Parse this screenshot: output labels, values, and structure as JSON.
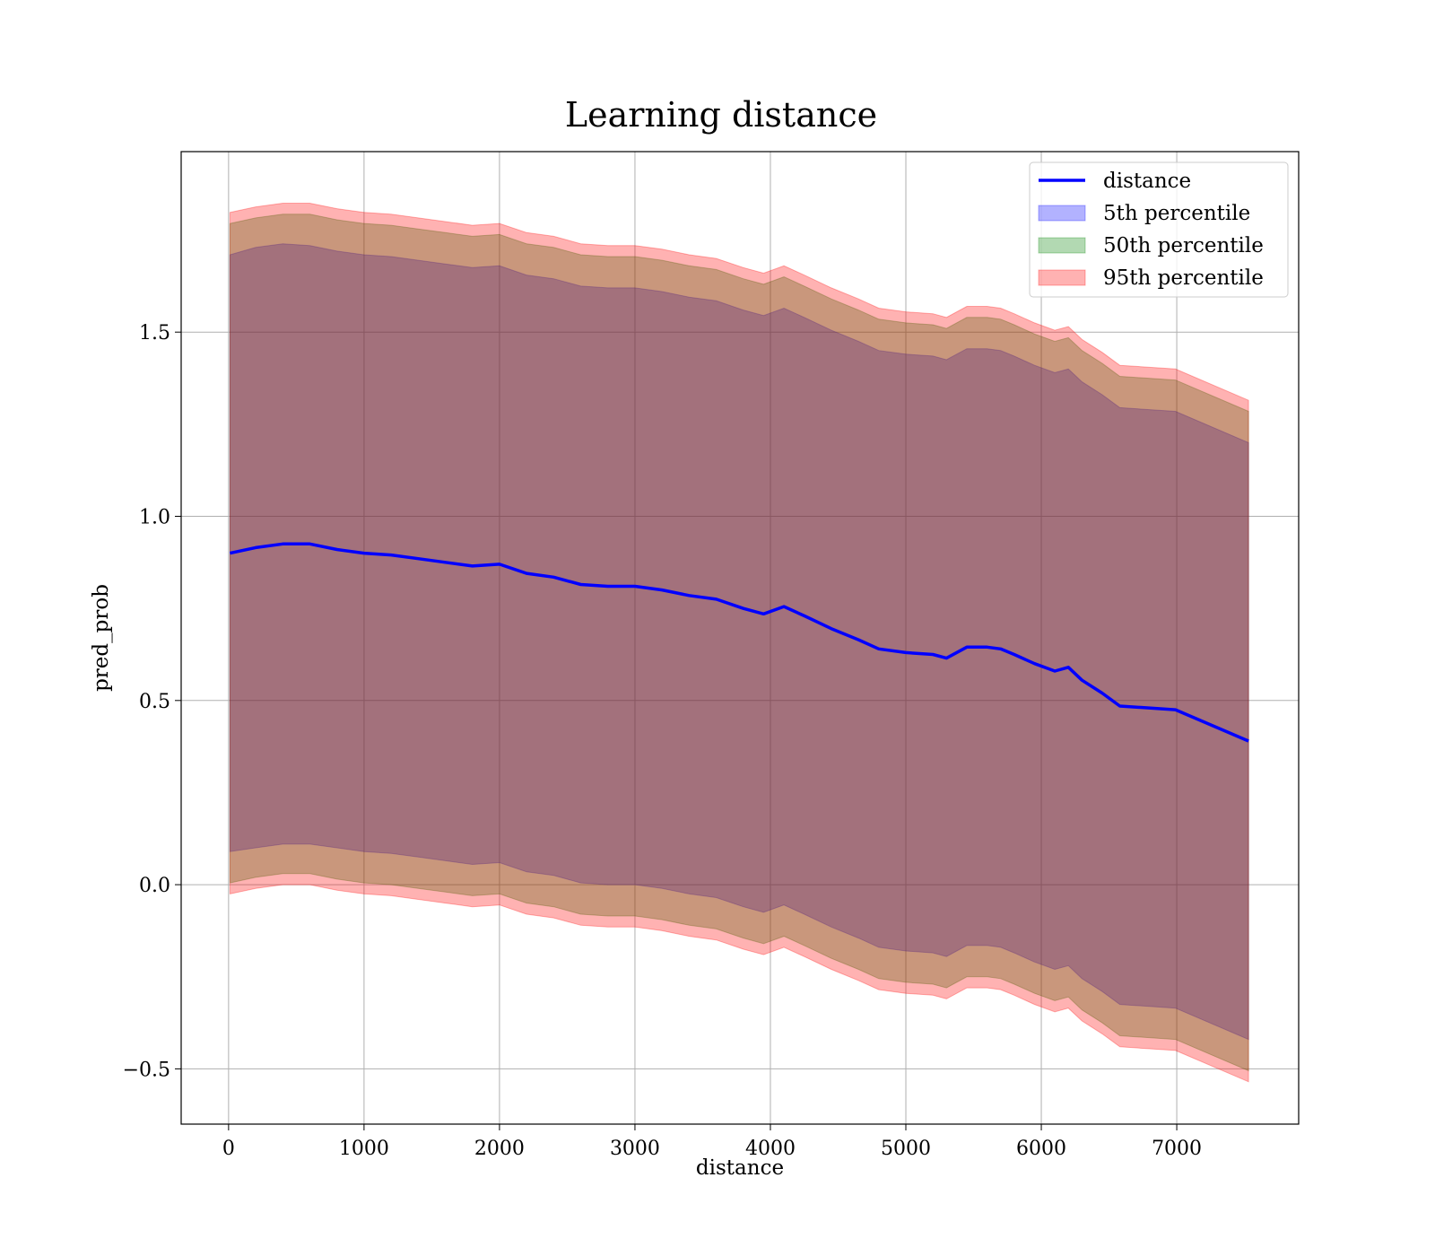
{
  "chart_data": {
    "type": "area",
    "title": "Learning distance",
    "xlabel": "distance",
    "ylabel": "pred_prob",
    "xlim": [
      -350,
      7900
    ],
    "ylim": [
      -0.65,
      1.99
    ],
    "xticks": [
      0,
      1000,
      2000,
      3000,
      4000,
      5000,
      6000,
      7000
    ],
    "yticks": [
      -0.5,
      0.0,
      0.5,
      1.0,
      1.5
    ],
    "xtick_labels": [
      "0",
      "1000",
      "2000",
      "3000",
      "4000",
      "5000",
      "6000",
      "7000"
    ],
    "ytick_labels": [
      "−0.5",
      "0.0",
      "0.5",
      "1.0",
      "1.5"
    ],
    "grid": true,
    "legend_position": "top-right",
    "x": [
      10,
      200,
      400,
      600,
      800,
      1000,
      1200,
      1400,
      1600,
      1800,
      2000,
      2200,
      2400,
      2600,
      2800,
      3000,
      3200,
      3400,
      3600,
      3800,
      3950,
      4100,
      4250,
      4450,
      4650,
      4800,
      5000,
      5200,
      5300,
      5450,
      5600,
      5700,
      5800,
      5950,
      6100,
      6200,
      6300,
      6450,
      6580,
      6990,
      7530
    ],
    "series": [
      {
        "name": "distance",
        "kind": "line",
        "color": "#0000ff",
        "values": [
          0.9,
          0.915,
          0.925,
          0.925,
          0.91,
          0.9,
          0.895,
          0.885,
          0.875,
          0.865,
          0.87,
          0.845,
          0.835,
          0.815,
          0.81,
          0.81,
          0.8,
          0.785,
          0.775,
          0.75,
          0.735,
          0.755,
          0.73,
          0.695,
          0.665,
          0.64,
          0.63,
          0.625,
          0.615,
          0.645,
          0.645,
          0.64,
          0.625,
          0.6,
          0.58,
          0.59,
          0.555,
          0.52,
          0.485,
          0.475,
          0.39
        ]
      },
      {
        "name": "5th percentile",
        "kind": "band",
        "color": "#0000ff",
        "upper": [
          1.71,
          1.73,
          1.74,
          1.735,
          1.72,
          1.71,
          1.705,
          1.695,
          1.685,
          1.675,
          1.68,
          1.655,
          1.645,
          1.625,
          1.62,
          1.62,
          1.61,
          1.595,
          1.585,
          1.56,
          1.545,
          1.565,
          1.54,
          1.505,
          1.475,
          1.45,
          1.44,
          1.435,
          1.425,
          1.455,
          1.455,
          1.45,
          1.435,
          1.41,
          1.39,
          1.4,
          1.365,
          1.33,
          1.295,
          1.285,
          1.2
        ],
        "lower": [
          0.09,
          0.1,
          0.11,
          0.11,
          0.1,
          0.09,
          0.085,
          0.075,
          0.065,
          0.055,
          0.06,
          0.035,
          0.025,
          0.005,
          0.0,
          0.0,
          -0.01,
          -0.025,
          -0.035,
          -0.06,
          -0.075,
          -0.055,
          -0.08,
          -0.115,
          -0.145,
          -0.17,
          -0.18,
          -0.185,
          -0.195,
          -0.165,
          -0.165,
          -0.17,
          -0.185,
          -0.21,
          -0.23,
          -0.22,
          -0.255,
          -0.29,
          -0.325,
          -0.335,
          -0.42
        ]
      },
      {
        "name": "50th percentile",
        "kind": "band",
        "color": "#008000",
        "upper": [
          1.795,
          1.81,
          1.82,
          1.82,
          1.805,
          1.795,
          1.79,
          1.78,
          1.77,
          1.76,
          1.765,
          1.74,
          1.73,
          1.71,
          1.705,
          1.705,
          1.695,
          1.68,
          1.67,
          1.645,
          1.63,
          1.65,
          1.625,
          1.59,
          1.56,
          1.535,
          1.525,
          1.52,
          1.51,
          1.54,
          1.54,
          1.535,
          1.52,
          1.495,
          1.475,
          1.485,
          1.45,
          1.415,
          1.38,
          1.37,
          1.285
        ],
        "lower": [
          0.005,
          0.02,
          0.03,
          0.03,
          0.015,
          0.005,
          0.0,
          -0.01,
          -0.02,
          -0.03,
          -0.025,
          -0.05,
          -0.06,
          -0.08,
          -0.085,
          -0.085,
          -0.095,
          -0.11,
          -0.12,
          -0.145,
          -0.16,
          -0.14,
          -0.165,
          -0.2,
          -0.23,
          -0.255,
          -0.265,
          -0.27,
          -0.28,
          -0.25,
          -0.25,
          -0.255,
          -0.27,
          -0.295,
          -0.315,
          -0.305,
          -0.34,
          -0.375,
          -0.41,
          -0.42,
          -0.505
        ]
      },
      {
        "name": "95th percentile",
        "kind": "band",
        "color": "#ff0000",
        "upper": [
          1.825,
          1.84,
          1.85,
          1.85,
          1.835,
          1.825,
          1.82,
          1.81,
          1.8,
          1.79,
          1.795,
          1.77,
          1.76,
          1.74,
          1.735,
          1.735,
          1.725,
          1.71,
          1.7,
          1.675,
          1.66,
          1.68,
          1.655,
          1.62,
          1.59,
          1.565,
          1.555,
          1.55,
          1.54,
          1.57,
          1.57,
          1.565,
          1.55,
          1.525,
          1.505,
          1.515,
          1.48,
          1.445,
          1.41,
          1.4,
          1.315
        ],
        "lower": [
          -0.025,
          -0.01,
          0.0,
          0.0,
          -0.015,
          -0.025,
          -0.03,
          -0.04,
          -0.05,
          -0.06,
          -0.055,
          -0.08,
          -0.09,
          -0.11,
          -0.115,
          -0.115,
          -0.125,
          -0.14,
          -0.15,
          -0.175,
          -0.19,
          -0.17,
          -0.195,
          -0.23,
          -0.26,
          -0.285,
          -0.295,
          -0.3,
          -0.31,
          -0.28,
          -0.28,
          -0.285,
          -0.3,
          -0.325,
          -0.345,
          -0.335,
          -0.37,
          -0.405,
          -0.44,
          -0.45,
          -0.535
        ]
      }
    ]
  }
}
